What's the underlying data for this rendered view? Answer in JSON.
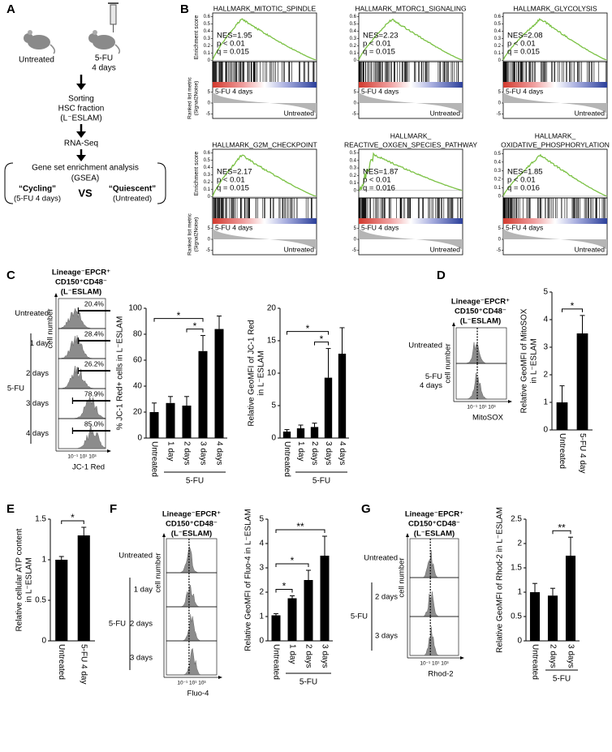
{
  "panels": {
    "A": {
      "label": "A",
      "untreated": "Untreated",
      "treated": "5-FU",
      "treated_time": "4 days",
      "sorting": [
        "Sorting",
        "HSC fraction",
        "(L⁻ESLAM)"
      ],
      "sequencing": "RNA-Seq",
      "gsea": [
        "Gene set enrichment analysis",
        "(GSEA)"
      ],
      "cycling": "“Cycling”",
      "cycling_sub": "(5-FU 4 days)",
      "vs": "VS",
      "quiescent": "“Quiescent”",
      "quiescent_sub": "(Untreated)"
    },
    "B": {
      "label": "B",
      "es_axis": "Enrichment score",
      "rank_axis": [
        "Ranked list metric",
        "(Signal2Noise)"
      ],
      "pos_label": "5-FU 4 days",
      "neg_label": "Untreated",
      "rank_ylim": [
        -7,
        7
      ],
      "rank_ticks": [
        5,
        0,
        -5
      ],
      "plots": [
        {
          "title": [
            "HALLMARK_MITOTIC_SPINDLE"
          ],
          "nes": "NES=1.95",
          "p": "p < 0.01",
          "q": "q = 0.015",
          "es_ylim": [
            -0.02,
            0.65
          ],
          "es_ticks": [
            0,
            0.1,
            0.2,
            0.3,
            0.4,
            0.5,
            0.6
          ]
        },
        {
          "title": [
            "HALLMARK_MTORC1_SIGNALING"
          ],
          "nes": "NES=2.23",
          "p": "p < 0.01",
          "q": "q = 0.015",
          "es_ylim": [
            -0.02,
            0.65
          ],
          "es_ticks": [
            0,
            0.1,
            0.2,
            0.3,
            0.4,
            0.5,
            0.6
          ]
        },
        {
          "title": [
            "HALLMARK_GLYCOLYSIS"
          ],
          "nes": "NES=2.08",
          "p": "p < 0.01",
          "q": "q = 0.015",
          "es_ylim": [
            -0.02,
            0.65
          ],
          "es_ticks": [
            0,
            0.1,
            0.2,
            0.3,
            0.4,
            0.5,
            0.6
          ]
        },
        {
          "title": [
            "HALLMARK_G2M_CHECKPOINT"
          ],
          "nes": "NES=2.17",
          "p": "p < 0.01",
          "q": "q = 0.015",
          "es_ylim": [
            -0.02,
            0.65
          ],
          "es_ticks": [
            0,
            0.1,
            0.2,
            0.3,
            0.4,
            0.5,
            0.6
          ]
        },
        {
          "title": [
            "HALLMARK_",
            "REACTIVE_OXGEN_SPECIES_PATHWAY"
          ],
          "nes": "NES=1.87",
          "p": "p < 0.01",
          "q": "q = 0.016",
          "es_ylim": [
            -0.1,
            0.55
          ],
          "es_ticks": [
            0,
            0.1,
            0.2,
            0.3,
            0.4,
            0.5
          ]
        },
        {
          "title": [
            "HALLMARK_",
            "OXIDATIVE_PHOSPHORYLATION"
          ],
          "nes": "NES=1.85",
          "p": "p < 0.01",
          "q": "q = 0.016",
          "es_ylim": [
            -0.02,
            0.55
          ],
          "es_ticks": [
            0,
            0.1,
            0.2,
            0.3,
            0.4,
            0.5
          ]
        }
      ]
    },
    "C": {
      "label": "C",
      "histogram": {
        "header": [
          "Lineage⁻EPCR⁺",
          "CD150⁺CD48⁻",
          "(L⁻ESLAM)"
        ],
        "rows": [
          [
            "Untreated"
          ],
          [
            "1 day"
          ],
          [
            "2 days"
          ],
          [
            "3 days"
          ],
          [
            "4 days"
          ]
        ],
        "group": "5-FU",
        "group_range": [
          1,
          4
        ],
        "gates": [
          "20.4%",
          "28.4%",
          "26.2%",
          "78.9%",
          "85.0%"
        ],
        "y_label": "cell number",
        "x_ticks": "10⁻¹ 10¹ 10³",
        "x_label": "JC-1 Red"
      },
      "charts": [
        {
          "type": "bar",
          "ylabel": [
            "% JC-1 Red+ cells in L⁻ESLAM"
          ],
          "categories": [
            "Untreated",
            "1 day",
            "2 days",
            "3 days",
            "4 days"
          ],
          "group": "5-FU",
          "group_range": [
            1,
            4
          ],
          "values": [
            20,
            27,
            25,
            67,
            84
          ],
          "errors": [
            7,
            5,
            7,
            12,
            10
          ],
          "ylim": [
            0,
            100
          ],
          "yticks": [
            0,
            20,
            40,
            60,
            80,
            100
          ],
          "significance": [
            {
              "label": "*",
              "from": 2,
              "to": 3
            },
            {
              "label": "*",
              "from": 0,
              "to": 3
            }
          ]
        },
        {
          "type": "bar",
          "ylabel": [
            "Relative GeoMFI of JC-1 Red",
            "in L⁻ESLAM"
          ],
          "categories": [
            "Untreated",
            "1 day",
            "2 days",
            "3 days",
            "4 days"
          ],
          "group": "5-FU",
          "group_range": [
            1,
            4
          ],
          "values": [
            1,
            1.5,
            1.7,
            9.3,
            13
          ],
          "errors": [
            0.3,
            0.5,
            0.6,
            4.5,
            4
          ],
          "ylim": [
            0,
            20
          ],
          "yticks": [
            0,
            5,
            10,
            15,
            20
          ],
          "significance": [
            {
              "label": "*",
              "from": 2,
              "to": 3
            },
            {
              "label": "*",
              "from": 0,
              "to": 3
            }
          ]
        }
      ]
    },
    "D": {
      "label": "D",
      "histogram": {
        "header": [
          "Lineage⁻EPCR⁺",
          "CD150⁺CD48⁻",
          "(L⁻ESLAM)"
        ],
        "rows": [
          [
            "Untreated"
          ],
          [
            "5-FU",
            "4 days"
          ]
        ],
        "y_label": "cell number",
        "x_ticks": "10⁻¹ 10¹ 10³",
        "x_label": "MitoSOX"
      },
      "charts": [
        {
          "type": "bar",
          "ylabel": [
            "Relative GeoMFI of MitoSOX",
            "in L⁻ESLAM"
          ],
          "categories": [
            "Untreated",
            "5-FU 4 day"
          ],
          "values": [
            1,
            3.5
          ],
          "errors": [
            0.6,
            0.65
          ],
          "ylim": [
            0,
            5
          ],
          "yticks": [
            0,
            1,
            2,
            3,
            4,
            5
          ],
          "significance": [
            {
              "label": "*",
              "from": 0,
              "to": 1
            }
          ]
        }
      ]
    },
    "E": {
      "label": "E",
      "charts": [
        {
          "type": "bar",
          "ylabel": [
            "Relative cellular ATP content",
            "in L⁻ESLAM"
          ],
          "categories": [
            "Untreated",
            "5-FU 4 day"
          ],
          "values": [
            1,
            1.3
          ],
          "errors": [
            0.04,
            0.1
          ],
          "ylim": [
            0,
            1.5
          ],
          "yticks": [
            0,
            0.5,
            1,
            1.5
          ],
          "significance": [
            {
              "label": "*",
              "from": 0,
              "to": 1
            }
          ]
        }
      ]
    },
    "F": {
      "label": "F",
      "histogram": {
        "header": [
          "Lineage⁻EPCR⁺",
          "CD150⁺CD48⁻",
          "(L⁻ESLAM)"
        ],
        "rows": [
          [
            "Untreated"
          ],
          [
            "1 day"
          ],
          [
            "2 days"
          ],
          [
            "3 days"
          ]
        ],
        "group": "5-FU",
        "group_range": [
          1,
          3
        ],
        "y_label": "cell number",
        "x_ticks": "10⁻¹ 10¹ 10³",
        "x_label": "Fluo-4"
      },
      "charts": [
        {
          "type": "bar",
          "ylabel": [
            "Relative GeoMFI of Fluo-4 in L⁻ESLAM"
          ],
          "categories": [
            "Untreated",
            "1 day",
            "2 days",
            "3 days"
          ],
          "group": "5-FU",
          "group_range": [
            1,
            3
          ],
          "values": [
            1.05,
            1.75,
            2.5,
            3.5
          ],
          "errors": [
            0.07,
            0.1,
            0.4,
            0.8
          ],
          "ylim": [
            0,
            5
          ],
          "yticks": [
            0,
            1,
            2,
            3,
            4,
            5
          ],
          "significance": [
            {
              "label": "*",
              "from": 0,
              "to": 1
            },
            {
              "label": "*",
              "from": 0,
              "to": 2
            },
            {
              "label": "**",
              "from": 0,
              "to": 3
            }
          ]
        }
      ]
    },
    "G": {
      "label": "G",
      "histogram": {
        "header": [
          "Lineage⁻EPCR⁺",
          "CD150⁺CD48⁻",
          "(L⁻ESLAM)"
        ],
        "rows": [
          [
            "Untreated"
          ],
          [
            "2 days"
          ],
          [
            "3 days"
          ]
        ],
        "group": "5-FU",
        "group_range": [
          1,
          2
        ],
        "y_label": "cell number",
        "x_ticks": "10⁻¹ 10¹ 10³",
        "x_label": "Rhod-2"
      },
      "charts": [
        {
          "type": "bar",
          "ylabel": [
            "Relative GeoMFI of Rhod-2 in L⁻ESLAM"
          ],
          "categories": [
            "Untreated",
            "2 days",
            "3 days"
          ],
          "group": "5-FU",
          "group_range": [
            1,
            2
          ],
          "values": [
            1,
            0.93,
            1.75
          ],
          "errors": [
            0.18,
            0.15,
            0.38
          ],
          "ylim": [
            0,
            2.5
          ],
          "yticks": [
            0,
            0.5,
            1,
            1.5,
            2,
            2.5
          ],
          "significance": [
            {
              "label": "**",
              "from": 1,
              "to": 2
            }
          ]
        }
      ]
    }
  }
}
